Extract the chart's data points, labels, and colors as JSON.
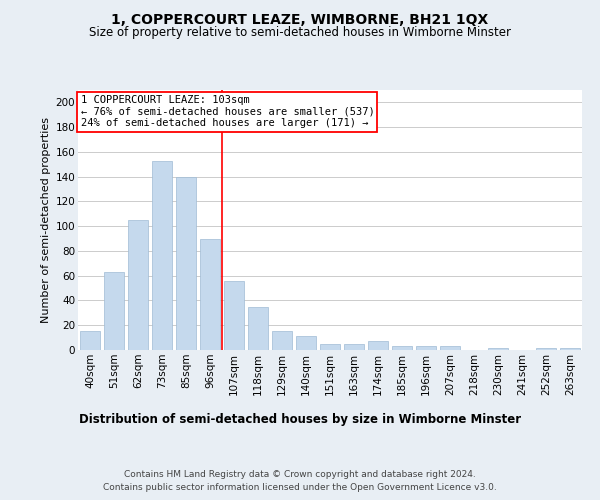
{
  "title": "1, COPPERCOURT LEAZE, WIMBORNE, BH21 1QX",
  "subtitle": "Size of property relative to semi-detached houses in Wimborne Minster",
  "xlabel": "Distribution of semi-detached houses by size in Wimborne Minster",
  "ylabel": "Number of semi-detached properties",
  "categories": [
    "40sqm",
    "51sqm",
    "62sqm",
    "73sqm",
    "85sqm",
    "96sqm",
    "107sqm",
    "118sqm",
    "129sqm",
    "140sqm",
    "151sqm",
    "163sqm",
    "174sqm",
    "185sqm",
    "196sqm",
    "207sqm",
    "218sqm",
    "230sqm",
    "241sqm",
    "252sqm",
    "263sqm"
  ],
  "values": [
    15,
    63,
    105,
    153,
    140,
    90,
    56,
    35,
    15,
    11,
    5,
    5,
    7,
    3,
    3,
    3,
    0,
    2,
    0,
    2,
    2
  ],
  "bar_color": "#c5d9ed",
  "bar_edge_color": "#a0bbd4",
  "property_line_index": 6,
  "annotation_text": "1 COPPERCOURT LEAZE: 103sqm\n← 76% of semi-detached houses are smaller (537)\n24% of semi-detached houses are larger (171) →",
  "footer": "Contains HM Land Registry data © Crown copyright and database right 2024.\nContains public sector information licensed under the Open Government Licence v3.0.",
  "ylim": [
    0,
    210
  ],
  "yticks": [
    0,
    20,
    40,
    60,
    80,
    100,
    120,
    140,
    160,
    180,
    200
  ],
  "bg_color": "#e8eef4",
  "plot_bg_color": "#ffffff",
  "grid_color": "#cccccc",
  "title_fontsize": 10,
  "subtitle_fontsize": 8.5,
  "xlabel_fontsize": 8.5,
  "ylabel_fontsize": 8,
  "tick_fontsize": 7.5,
  "footer_fontsize": 6.5,
  "ann_fontsize": 7.5
}
